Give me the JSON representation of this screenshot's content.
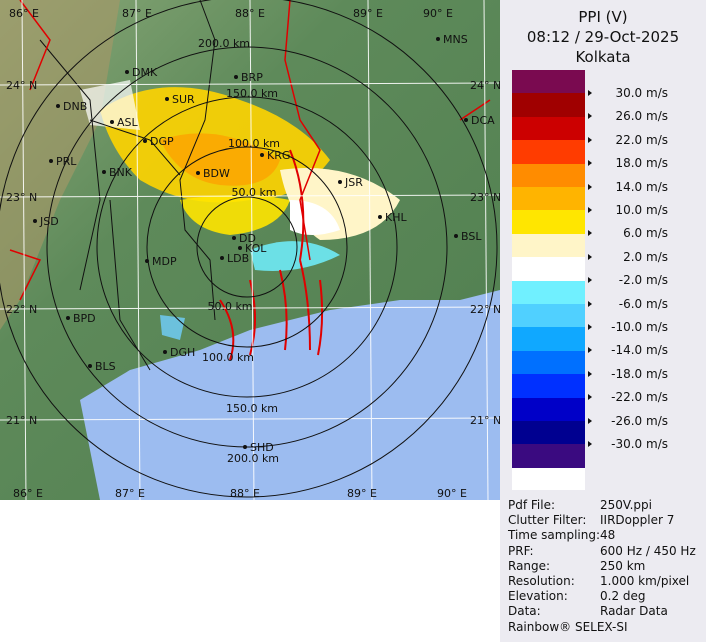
{
  "header": {
    "product": "PPI (V)",
    "datetime": "08:12 / 29-Oct-2025",
    "site": "Kolkata"
  },
  "legend": {
    "unit": "m/s",
    "colors": [
      "#7a0a50",
      "#a00000",
      "#cc0000",
      "#ff3c00",
      "#ff8c00",
      "#ffb400",
      "#ffe600",
      "#fff5c8",
      "#ffffff",
      "#70f0ff",
      "#50d0ff",
      "#10a8ff",
      "#0070ff",
      "#0030ff",
      "#0000c8",
      "#000090",
      "#3a0a80"
    ],
    "labels": [
      "30.0 m/s",
      "26.0 m/s",
      "22.0 m/s",
      "18.0 m/s",
      "14.0 m/s",
      "10.0 m/s",
      "6.0 m/s",
      "2.0 m/s",
      "-2.0 m/s",
      "-6.0 m/s",
      "-10.0 m/s",
      "-14.0 m/s",
      "-18.0 m/s",
      "-22.0 m/s",
      "-26.0 m/s",
      "-30.0 m/s"
    ]
  },
  "info": [
    {
      "k": "Pdf File:",
      "v": "250V.ppi"
    },
    {
      "k": "Clutter Filter:",
      "v": "IIRDoppler 7"
    },
    {
      "k": "Time sampling:",
      "v": "48"
    },
    {
      "k": "PRF:",
      "v": "600 Hz / 450 Hz"
    },
    {
      "k": "Range:",
      "v": "250 km"
    },
    {
      "k": "Resolution:",
      "v": "1.000 km/pixel"
    },
    {
      "k": "Elevation:",
      "v": "0.2 deg"
    },
    {
      "k": "Data:",
      "v": "Radar Data"
    }
  ],
  "brand": "Rainbow® SELEX-SI",
  "map": {
    "range_rings_km": [
      50,
      100,
      150,
      200,
      250
    ],
    "range_labels": [
      "200.0 km",
      "150.0 km",
      "100.0 km",
      "50.0 km",
      "50.0 km",
      "100.0 km",
      "150.0 km",
      "200.0 km"
    ],
    "lon_labels": [
      "86° E",
      "87° E",
      "88° E",
      "89° E",
      "90° E"
    ],
    "lat_labels": [
      "24° N",
      "23° N",
      "22° N",
      "21° N"
    ],
    "stations": [
      "DMK",
      "BRP",
      "DNB",
      "SUR",
      "ASL",
      "DGP",
      "KRG",
      "BNK",
      "PRL",
      "BDW",
      "JSR",
      "KHL",
      "JSD",
      "MDP",
      "DD",
      "KOL",
      "LDB",
      "BSL",
      "BPD",
      "DGH",
      "BLS",
      "SHD",
      "MNS",
      "DCA"
    ]
  }
}
